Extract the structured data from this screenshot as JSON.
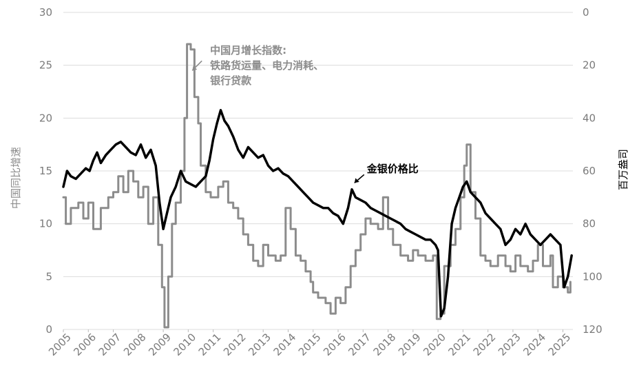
{
  "chart_data": {
    "type": "line",
    "title": "",
    "left_axis": {
      "label": "中国同比增速",
      "ticks": [
        0,
        5,
        10,
        15,
        20,
        25,
        30
      ],
      "ylim": [
        0,
        30
      ],
      "color": "#8c8c8c"
    },
    "right_axis": {
      "label": "百万盎司",
      "ticks": [
        0,
        20,
        40,
        60,
        80,
        100,
        120
      ],
      "ylim": [
        120,
        0
      ],
      "inverted": true,
      "color": "#000000"
    },
    "x_axis": {
      "type": "year",
      "tick_labels": [
        "2005",
        "2006",
        "2007",
        "2008",
        "2009",
        "2010",
        "2011",
        "2012",
        "2013",
        "2014",
        "2015",
        "2016",
        "2017",
        "2018",
        "2019",
        "2020",
        "2021",
        "2022",
        "2023",
        "2024",
        "2025"
      ],
      "xlim": [
        2005.0,
        2025.4
      ]
    },
    "grid": "horizontal",
    "series": [
      {
        "name": "中国月增长指数: 铁路货运量、电力消耗、银行贷款",
        "axis": "left",
        "color": "#8c8c8c",
        "step": true,
        "points": [
          [
            2005.0,
            12.5
          ],
          [
            2005.1,
            10.0
          ],
          [
            2005.3,
            11.5
          ],
          [
            2005.6,
            12.0
          ],
          [
            2005.8,
            10.5
          ],
          [
            2006.0,
            12.0
          ],
          [
            2006.2,
            9.5
          ],
          [
            2006.5,
            11.5
          ],
          [
            2006.8,
            12.5
          ],
          [
            2007.0,
            13.0
          ],
          [
            2007.2,
            14.5
          ],
          [
            2007.4,
            13.0
          ],
          [
            2007.6,
            15.0
          ],
          [
            2007.8,
            14.0
          ],
          [
            2008.0,
            12.5
          ],
          [
            2008.2,
            13.5
          ],
          [
            2008.4,
            10.0
          ],
          [
            2008.6,
            12.5
          ],
          [
            2008.8,
            8.0
          ],
          [
            2008.95,
            4.0
          ],
          [
            2009.05,
            0.2
          ],
          [
            2009.2,
            5.0
          ],
          [
            2009.35,
            10.0
          ],
          [
            2009.5,
            12.0
          ],
          [
            2009.7,
            15.0
          ],
          [
            2009.85,
            20.0
          ],
          [
            2009.95,
            27.0
          ],
          [
            2010.1,
            26.5
          ],
          [
            2010.25,
            22.0
          ],
          [
            2010.4,
            19.5
          ],
          [
            2010.5,
            15.5
          ],
          [
            2010.7,
            13.0
          ],
          [
            2010.9,
            12.5
          ],
          [
            2011.0,
            12.5
          ],
          [
            2011.2,
            13.5
          ],
          [
            2011.4,
            14.0
          ],
          [
            2011.6,
            12.0
          ],
          [
            2011.8,
            11.5
          ],
          [
            2012.0,
            10.5
          ],
          [
            2012.2,
            9.0
          ],
          [
            2012.4,
            8.0
          ],
          [
            2012.6,
            6.5
          ],
          [
            2012.8,
            6.0
          ],
          [
            2013.0,
            8.0
          ],
          [
            2013.2,
            7.0
          ],
          [
            2013.5,
            6.5
          ],
          [
            2013.7,
            7.0
          ],
          [
            2013.9,
            11.5
          ],
          [
            2014.1,
            9.5
          ],
          [
            2014.3,
            7.0
          ],
          [
            2014.5,
            6.5
          ],
          [
            2014.7,
            5.5
          ],
          [
            2014.9,
            4.5
          ],
          [
            2015.0,
            3.5
          ],
          [
            2015.2,
            3.0
          ],
          [
            2015.5,
            2.5
          ],
          [
            2015.7,
            1.5
          ],
          [
            2015.9,
            3.0
          ],
          [
            2016.1,
            2.5
          ],
          [
            2016.3,
            4.0
          ],
          [
            2016.5,
            6.0
          ],
          [
            2016.7,
            7.5
          ],
          [
            2016.9,
            9.0
          ],
          [
            2017.1,
            10.5
          ],
          [
            2017.3,
            10.0
          ],
          [
            2017.6,
            9.5
          ],
          [
            2017.8,
            12.5
          ],
          [
            2018.0,
            9.5
          ],
          [
            2018.2,
            8.0
          ],
          [
            2018.5,
            7.0
          ],
          [
            2018.8,
            6.5
          ],
          [
            2019.0,
            7.5
          ],
          [
            2019.2,
            7.0
          ],
          [
            2019.5,
            6.5
          ],
          [
            2019.8,
            7.0
          ],
          [
            2019.95,
            1.0
          ],
          [
            2020.1,
            1.5
          ],
          [
            2020.25,
            6.0
          ],
          [
            2020.5,
            8.0
          ],
          [
            2020.7,
            9.5
          ],
          [
            2020.9,
            12.5
          ],
          [
            2021.05,
            15.5
          ],
          [
            2021.15,
            17.5
          ],
          [
            2021.3,
            13.0
          ],
          [
            2021.5,
            10.5
          ],
          [
            2021.7,
            7.0
          ],
          [
            2021.9,
            6.5
          ],
          [
            2022.1,
            6.0
          ],
          [
            2022.4,
            7.0
          ],
          [
            2022.7,
            6.0
          ],
          [
            2022.9,
            5.5
          ],
          [
            2023.1,
            7.0
          ],
          [
            2023.3,
            6.0
          ],
          [
            2023.6,
            5.5
          ],
          [
            2023.8,
            6.5
          ],
          [
            2024.0,
            8.0
          ],
          [
            2024.2,
            6.0
          ],
          [
            2024.5,
            7.0
          ],
          [
            2024.6,
            4.0
          ],
          [
            2024.8,
            5.0
          ],
          [
            2025.0,
            4.0
          ],
          [
            2025.2,
            3.5
          ],
          [
            2025.3,
            4.5
          ]
        ]
      },
      {
        "name": "金银价格比",
        "axis": "right",
        "color": "#000000",
        "step": false,
        "points": [
          [
            2005.0,
            66
          ],
          [
            2005.15,
            60
          ],
          [
            2005.3,
            62
          ],
          [
            2005.5,
            63
          ],
          [
            2005.7,
            61
          ],
          [
            2005.9,
            59
          ],
          [
            2006.05,
            60
          ],
          [
            2006.2,
            56
          ],
          [
            2006.35,
            53
          ],
          [
            2006.5,
            57
          ],
          [
            2006.7,
            54
          ],
          [
            2006.9,
            52
          ],
          [
            2007.1,
            50
          ],
          [
            2007.3,
            49
          ],
          [
            2007.5,
            51
          ],
          [
            2007.7,
            53
          ],
          [
            2007.9,
            54
          ],
          [
            2008.1,
            50
          ],
          [
            2008.3,
            55
          ],
          [
            2008.5,
            52
          ],
          [
            2008.7,
            58
          ],
          [
            2008.85,
            72
          ],
          [
            2009.0,
            82
          ],
          [
            2009.15,
            76
          ],
          [
            2009.3,
            70
          ],
          [
            2009.5,
            66
          ],
          [
            2009.7,
            60
          ],
          [
            2009.9,
            64
          ],
          [
            2010.1,
            65
          ],
          [
            2010.3,
            66
          ],
          [
            2010.5,
            64
          ],
          [
            2010.7,
            62
          ],
          [
            2010.85,
            56
          ],
          [
            2011.0,
            48
          ],
          [
            2011.15,
            42
          ],
          [
            2011.3,
            37
          ],
          [
            2011.45,
            41
          ],
          [
            2011.6,
            43
          ],
          [
            2011.8,
            47
          ],
          [
            2012.0,
            52
          ],
          [
            2012.2,
            55
          ],
          [
            2012.4,
            51
          ],
          [
            2012.6,
            53
          ],
          [
            2012.8,
            55
          ],
          [
            2013.0,
            54
          ],
          [
            2013.2,
            58
          ],
          [
            2013.4,
            60
          ],
          [
            2013.6,
            59
          ],
          [
            2013.8,
            61
          ],
          [
            2014.0,
            62
          ],
          [
            2014.2,
            64
          ],
          [
            2014.4,
            66
          ],
          [
            2014.6,
            68
          ],
          [
            2014.8,
            70
          ],
          [
            2015.0,
            72
          ],
          [
            2015.2,
            73
          ],
          [
            2015.4,
            74
          ],
          [
            2015.6,
            74
          ],
          [
            2015.8,
            76
          ],
          [
            2016.0,
            77
          ],
          [
            2016.2,
            80
          ],
          [
            2016.4,
            74
          ],
          [
            2016.55,
            67
          ],
          [
            2016.7,
            70
          ],
          [
            2016.9,
            71
          ],
          [
            2017.1,
            72
          ],
          [
            2017.3,
            74
          ],
          [
            2017.5,
            75
          ],
          [
            2017.7,
            76
          ],
          [
            2017.9,
            77
          ],
          [
            2018.1,
            78
          ],
          [
            2018.3,
            79
          ],
          [
            2018.5,
            80
          ],
          [
            2018.7,
            82
          ],
          [
            2018.9,
            83
          ],
          [
            2019.1,
            84
          ],
          [
            2019.3,
            85
          ],
          [
            2019.5,
            86
          ],
          [
            2019.7,
            86
          ],
          [
            2019.9,
            88
          ],
          [
            2020.0,
            90
          ],
          [
            2020.12,
            115
          ],
          [
            2020.25,
            112
          ],
          [
            2020.4,
            100
          ],
          [
            2020.55,
            80
          ],
          [
            2020.7,
            74
          ],
          [
            2020.85,
            70
          ],
          [
            2021.0,
            66
          ],
          [
            2021.15,
            64
          ],
          [
            2021.3,
            68
          ],
          [
            2021.5,
            70
          ],
          [
            2021.7,
            72
          ],
          [
            2021.9,
            76
          ],
          [
            2022.1,
            78
          ],
          [
            2022.3,
            80
          ],
          [
            2022.5,
            82
          ],
          [
            2022.7,
            88
          ],
          [
            2022.9,
            86
          ],
          [
            2023.1,
            82
          ],
          [
            2023.3,
            84
          ],
          [
            2023.5,
            80
          ],
          [
            2023.7,
            84
          ],
          [
            2023.9,
            86
          ],
          [
            2024.1,
            88
          ],
          [
            2024.3,
            86
          ],
          [
            2024.5,
            84
          ],
          [
            2024.7,
            86
          ],
          [
            2024.9,
            88
          ],
          [
            2025.05,
            104
          ],
          [
            2025.2,
            100
          ],
          [
            2025.35,
            92
          ]
        ]
      }
    ],
    "annotations": [
      {
        "lines": [
          "中国月增长指数:",
          "铁路货运量、电力消耗、",
          "银行贷款"
        ],
        "color": "#8c8c8c",
        "anchor_x": 2010.05,
        "anchor_y_left": 24.5,
        "axis": "left"
      },
      {
        "lines": [
          "金银价格比"
        ],
        "color": "#000000",
        "anchor_x": 2016.6,
        "anchor_y_right": 64,
        "axis": "right"
      }
    ]
  }
}
